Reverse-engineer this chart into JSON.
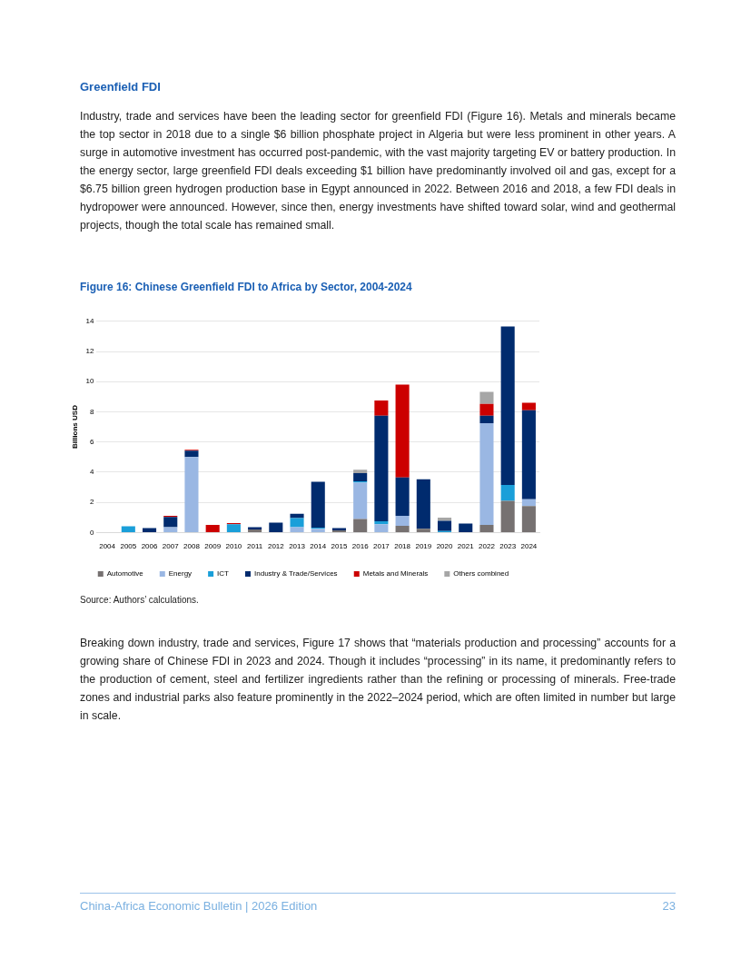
{
  "chart_data": {
    "type": "bar",
    "title": "Figure 16: Chinese Greenfield FDI to Africa by Sector, 2004-2024",
    "ylabel": "Billions USD",
    "stacked": true,
    "categories": [
      "2004",
      "2005",
      "2006",
      "2007",
      "2008",
      "2009",
      "2010",
      "2011",
      "2012",
      "2013",
      "2014",
      "2015",
      "2016",
      "2017",
      "2018",
      "2019",
      "2020",
      "2021",
      "2022",
      "2023",
      "2024"
    ],
    "series": [
      {
        "name": "Automotive",
        "color": "#767171",
        "values": [
          null,
          null,
          null,
          null,
          null,
          null,
          null,
          0.2,
          null,
          null,
          null,
          0.15,
          0.9,
          null,
          0.45,
          0.25,
          null,
          null,
          0.5,
          2.1,
          1.75
        ]
      },
      {
        "name": "Energy",
        "color": "#9ab7e3",
        "values": [
          null,
          null,
          null,
          0.35,
          5.0,
          null,
          null,
          null,
          null,
          0.35,
          0.25,
          null,
          2.4,
          0.55,
          0.65,
          null,
          null,
          null,
          6.74,
          null,
          0.46
        ]
      },
      {
        "name": "ICT",
        "color": "#1a9fd9",
        "values": [
          null,
          0.42,
          null,
          null,
          null,
          null,
          0.55,
          null,
          null,
          0.6,
          0.07,
          null,
          0.1,
          0.2,
          null,
          null,
          0.1,
          null,
          null,
          1.05,
          null
        ]
      },
      {
        "name": "Industry & Trade/Services",
        "color": "#002b6e",
        "values": [
          null,
          null,
          0.3,
          0.68,
          0.43,
          null,
          null,
          0.15,
          0.65,
          0.3,
          3.05,
          0.15,
          0.53,
          7.0,
          2.55,
          3.28,
          0.67,
          0.6,
          0.5,
          10.5,
          5.89
        ]
      },
      {
        "name": "Metals and Minerals",
        "color": "#cc0000",
        "values": [
          null,
          null,
          null,
          0.07,
          0.05,
          0.5,
          0.08,
          null,
          null,
          null,
          null,
          null,
          null,
          1.0,
          6.15,
          null,
          null,
          null,
          0.78,
          null,
          0.5
        ]
      },
      {
        "name": "Others combined",
        "color": "#a6a6a6",
        "values": [
          null,
          null,
          null,
          null,
          null,
          null,
          null,
          null,
          null,
          null,
          null,
          null,
          0.23,
          null,
          null,
          null,
          0.21,
          null,
          0.81,
          null,
          null
        ]
      }
    ],
    "ylim": [
      0,
      14
    ],
    "yticks": [
      0,
      2,
      4,
      6,
      8,
      10,
      12,
      14
    ],
    "grid": "y",
    "legend": "bottom",
    "annotations": [
      "Greenfield FDI",
      "Industry, trade and services have been the leading sector for greenfield FDI (Figure 16). Metals and minerals became the top sector in 2018 due to a single $6 billion phosphate project in Algeria but were less prominent in other years. A surge in automotive investment has occurred post-pandemic, with the vast majority targeting EV or battery production. In the energy sector, large greenfield FDI deals exceeding $1 billion have predominantly involved oil and gas, except for a $6.75 billion green hydrogen production base in Egypt announced in 2022. Between 2016 and 2018, a few FDI deals in hydropower were announced. However, since then, energy investments have shifted toward solar, wind and geothermal projects, though the total scale has remained small.",
      "Source: Authors’ calculations.",
      "Breaking down industry, trade and services, Figure 17 shows that “materials production and processing” accounts for a growing share of Chinese FDI in 2023 and 2024. Though it includes “processing” in its name, it predominantly refers to the production of cement, steel and fertilizer ingredients rather than the refining or processing of minerals. Free-trade zones and industrial parks also feature prominently in the 2022–2024 period, which are often limited in number but large in scale.",
      "China-Africa Economic Bulletin | 2026 Edition",
      "23"
    ]
  }
}
